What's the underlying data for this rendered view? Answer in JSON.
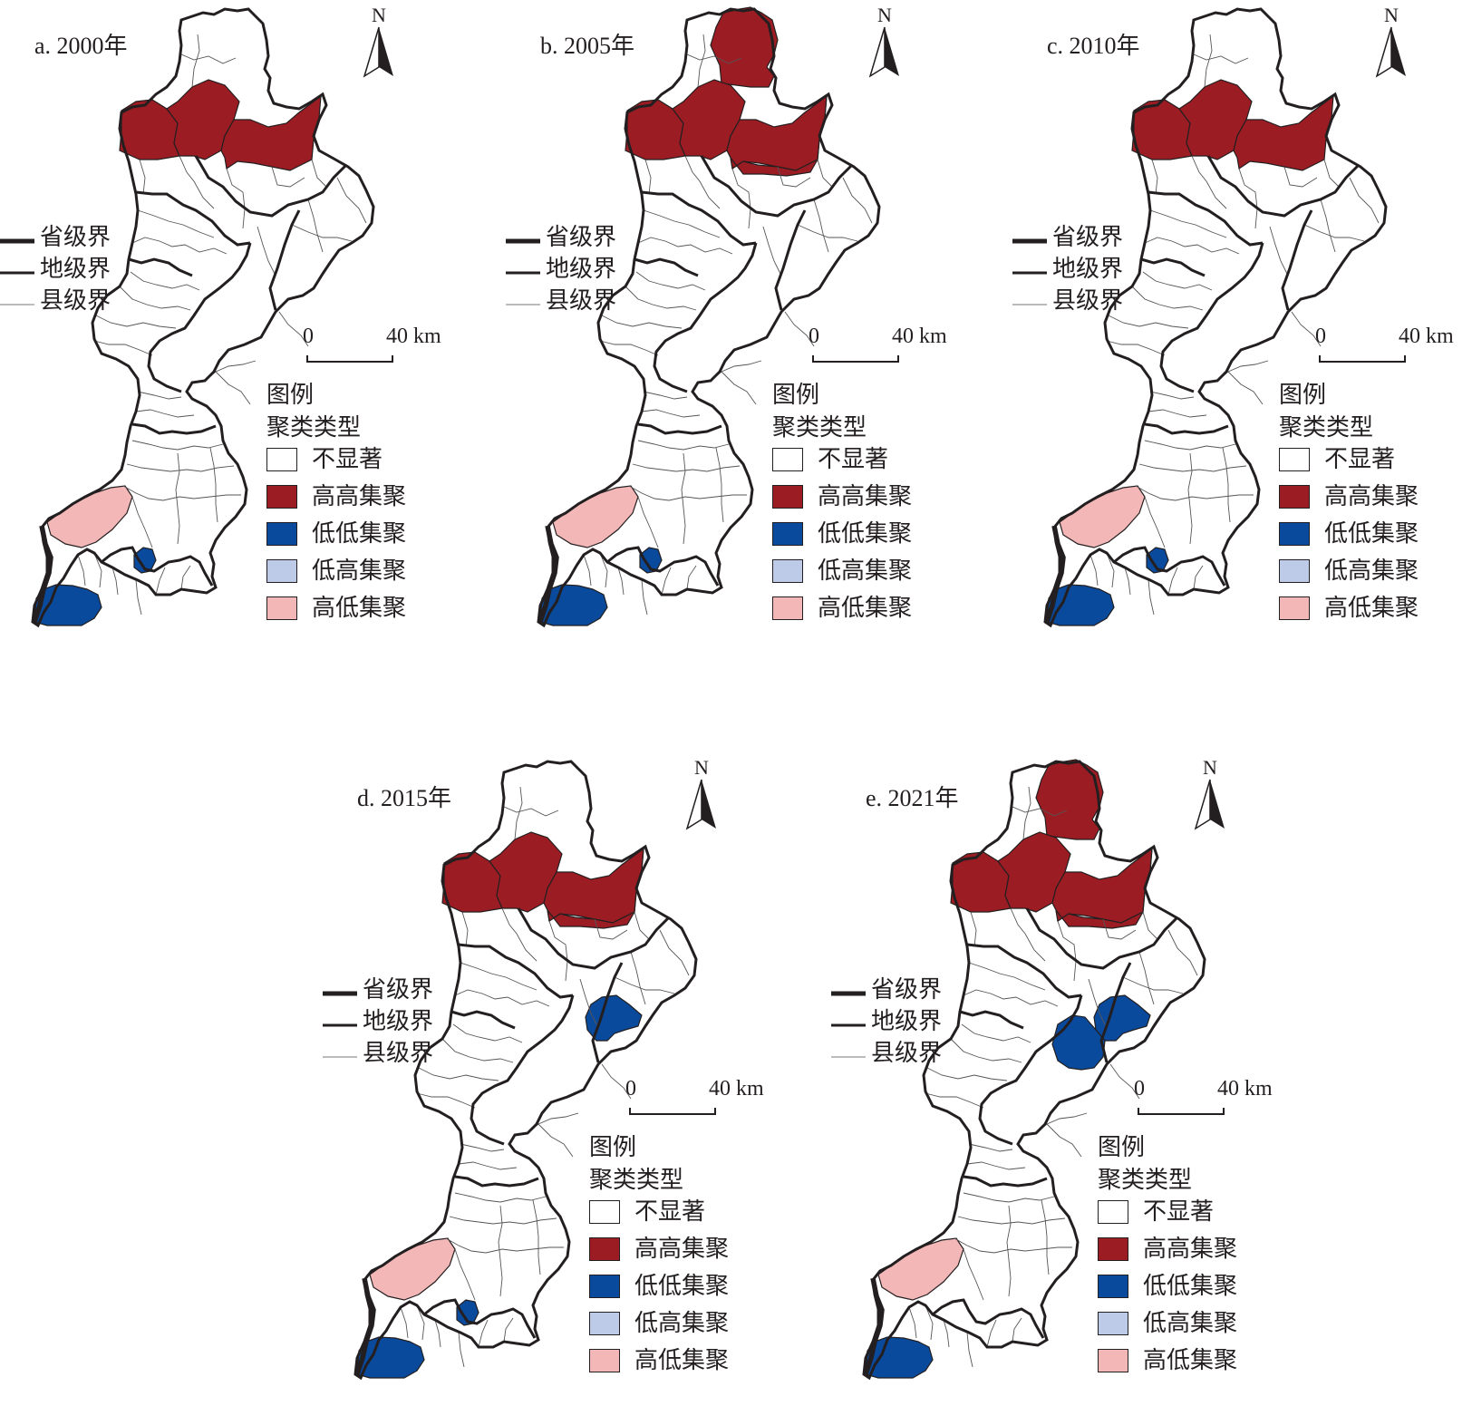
{
  "colors": {
    "not_significant": "#ffffff",
    "high_high": "#9b1c23",
    "low_low": "#0a4a9c",
    "low_high": "#bdcbe8",
    "high_low": "#f4b7b7",
    "outline": "#231f20"
  },
  "boundary_legend": [
    "省级界",
    "地级界",
    "县级界"
  ],
  "cluster_legend": {
    "title": "图例",
    "subtitle": "聚类类型",
    "items": [
      {
        "label": "不显著",
        "color": "#ffffff"
      },
      {
        "label": "高高集聚",
        "color": "#9b1c23"
      },
      {
        "label": "低低集聚",
        "color": "#0a4a9c"
      },
      {
        "label": "低高集聚",
        "color": "#bdcbe8"
      },
      {
        "label": "高低集聚",
        "color": "#f4b7b7"
      }
    ]
  },
  "scale_bar": {
    "start": "0",
    "end": "40 km"
  },
  "north": "N",
  "panels": [
    {
      "title": "a. 2000年",
      "hh": [
        "nw",
        "nm",
        "ne"
      ],
      "ll": [
        "sw",
        "sm"
      ],
      "hl": [
        "sp"
      ]
    },
    {
      "title": "b. 2005年",
      "hh": [
        "nt",
        "nw",
        "nm",
        "ne",
        "nc"
      ],
      "ll": [
        "sw",
        "sm"
      ],
      "hl": [
        "sp"
      ]
    },
    {
      "title": "c. 2010年",
      "hh": [
        "nw",
        "nm",
        "ne"
      ],
      "ll": [
        "sw",
        "sm"
      ],
      "hl": [
        "sp"
      ]
    },
    {
      "title": "d. 2015年",
      "hh": [
        "nw",
        "nm",
        "ne",
        "nc"
      ],
      "ll": [
        "sw",
        "sm",
        "ea"
      ],
      "hl": [
        "sp"
      ]
    },
    {
      "title": "e. 2021年",
      "hh": [
        "nt",
        "nw",
        "nm",
        "ne",
        "nc"
      ],
      "ll": [
        "sw",
        "ea",
        "eb"
      ],
      "hl": [
        "sp"
      ]
    }
  ]
}
